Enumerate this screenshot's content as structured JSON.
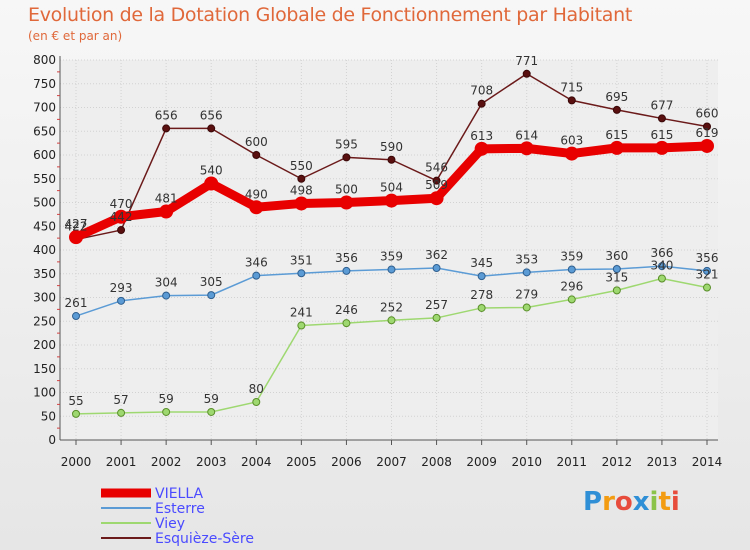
{
  "chart_data": {
    "type": "line",
    "title": "Evolution de la Dotation Globale de Fonctionnement par Habitant",
    "subtitle": "(en € et par an)",
    "x": [
      "2000",
      "2001",
      "2002",
      "2003",
      "2004",
      "2005",
      "2006",
      "2007",
      "2008",
      "2009",
      "2010",
      "2011",
      "2012",
      "2013",
      "2014"
    ],
    "ylim": [
      0,
      800
    ],
    "yticks": [
      0,
      50,
      100,
      150,
      200,
      250,
      300,
      350,
      400,
      450,
      500,
      550,
      600,
      650,
      700,
      750,
      800
    ],
    "grid": true,
    "legend_position": "bottom-left",
    "series": [
      {
        "name": "VIELLA",
        "color": "#e80000",
        "values": [
          427,
          470,
          481,
          540,
          490,
          498,
          500,
          504,
          509,
          613,
          614,
          603,
          615,
          615,
          619
        ],
        "labels": [
          "427",
          "470",
          "481",
          "540",
          "490",
          "498",
          "500",
          "504",
          "509",
          "613",
          "614",
          "603",
          "615",
          "615",
          "619"
        ]
      },
      {
        "name": "Esterre",
        "color": "#5b9bd5",
        "values": [
          261,
          293,
          304,
          305,
          346,
          351,
          356,
          359,
          362,
          345,
          353,
          359,
          360,
          366,
          356
        ],
        "labels": [
          "261",
          "293",
          "304",
          "305",
          "346",
          "351",
          "356",
          "359",
          "362",
          "345",
          "353",
          "359",
          "360",
          "366",
          "356"
        ]
      },
      {
        "name": "Viey",
        "color": "#9ed870",
        "values": [
          55,
          57,
          59,
          59,
          80,
          241,
          246,
          252,
          257,
          278,
          279,
          296,
          315,
          340,
          321
        ],
        "labels": [
          "55",
          "57",
          "59",
          "59",
          "80",
          "241",
          "246",
          "252",
          "257",
          "278",
          "279",
          "296",
          "315",
          "340",
          "321"
        ]
      },
      {
        "name": "Esquièze-Sère",
        "color": "#6b1a1a",
        "values": [
          422,
          442,
          656,
          656,
          600,
          550,
          595,
          590,
          546,
          708,
          771,
          715,
          695,
          677,
          660
        ],
        "labels": [
          "422",
          "442",
          "656",
          "656",
          "600",
          "550",
          "595",
          "590",
          "546",
          "708",
          "771",
          "715",
          "695",
          "677",
          "660"
        ]
      }
    ]
  },
  "brand": {
    "text": "Proxiti",
    "letters": [
      "P",
      "r",
      "o",
      "x",
      "i",
      "t",
      "i"
    ],
    "colors": [
      "#2f8fd6",
      "#f39c12",
      "#e74c3c",
      "#2f8fd6",
      "#8bc34a",
      "#f39c12",
      "#e74c3c"
    ]
  }
}
